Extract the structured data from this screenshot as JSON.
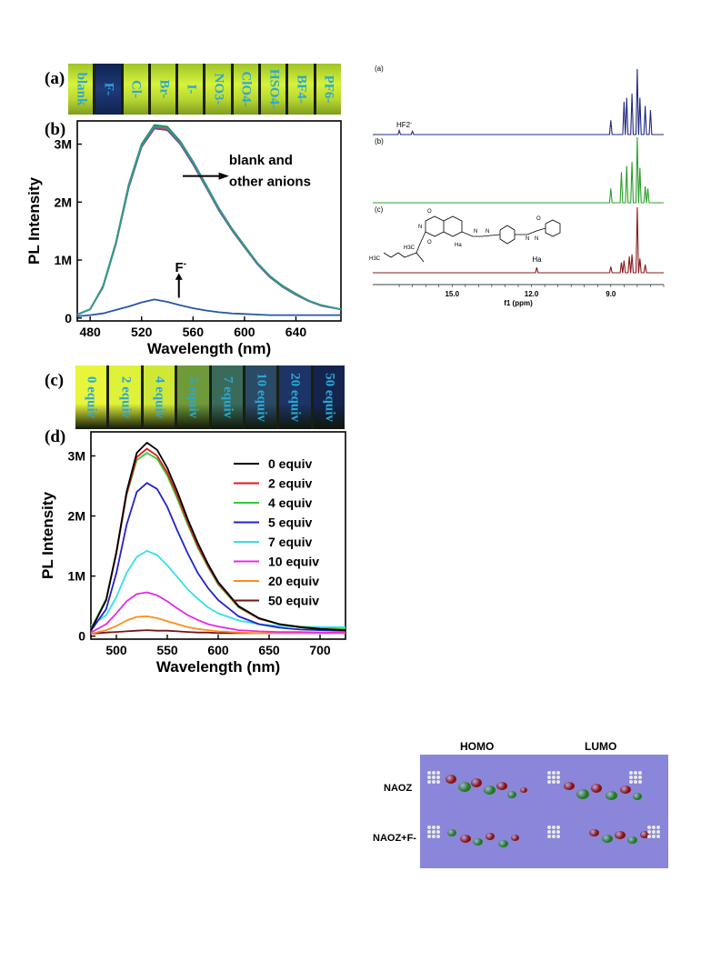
{
  "panel_a": {
    "label": "(a)",
    "vials": [
      "blank",
      "F-",
      "Cl-",
      "Br-",
      "I-",
      "NO3-",
      "ClO4-",
      "HSO4-",
      "BF4-",
      "PF6-"
    ]
  },
  "panel_b": {
    "label": "(b)"
  },
  "panel_c": {
    "label": "(c)",
    "vials": [
      "0 equiv",
      "2 equiv",
      "4 equiv",
      "5 equiv",
      "7 equiv",
      "10 equiv",
      "20 equiv",
      "50 equiv"
    ]
  },
  "panel_d": {
    "label": "(d)"
  },
  "colors": {
    "vial_bright": "#d6f23a",
    "vial_dark_blue": "#1f3a7a",
    "vial_text": "#2aa7d6",
    "mo_background": "#8a86d9"
  },
  "chart_data": [
    {
      "id": "b",
      "type": "line",
      "xlabel": "Wavelength (nm)",
      "ylabel": "PL Intensity",
      "xlim": [
        470,
        675
      ],
      "ylim": [
        -0.05,
        3.4
      ],
      "xticks": [
        480,
        520,
        560,
        600,
        640
      ],
      "yticks": [
        0,
        1,
        2,
        3
      ],
      "ytick_labels": [
        "0",
        "1M",
        "2M",
        "3M"
      ],
      "x": [
        470,
        480,
        490,
        500,
        510,
        520,
        530,
        540,
        550,
        560,
        570,
        580,
        590,
        600,
        610,
        620,
        630,
        640,
        650,
        660,
        675
      ],
      "series": [
        {
          "color": "#2e7d32",
          "values": [
            0.06,
            0.15,
            0.55,
            1.3,
            2.3,
            3.0,
            3.33,
            3.3,
            3.05,
            2.7,
            2.3,
            1.9,
            1.55,
            1.25,
            0.95,
            0.72,
            0.55,
            0.42,
            0.3,
            0.22,
            0.15
          ]
        },
        {
          "color": "#e05a3a",
          "values": [
            0.06,
            0.15,
            0.54,
            1.28,
            2.27,
            2.97,
            3.29,
            3.26,
            3.02,
            2.67,
            2.28,
            1.88,
            1.53,
            1.23,
            0.94,
            0.71,
            0.54,
            0.41,
            0.3,
            0.21,
            0.15
          ]
        },
        {
          "color": "#7a4b9c",
          "values": [
            0.06,
            0.15,
            0.53,
            1.27,
            2.25,
            2.95,
            3.27,
            3.24,
            3.0,
            2.65,
            2.26,
            1.86,
            1.52,
            1.22,
            0.93,
            0.7,
            0.53,
            0.4,
            0.29,
            0.21,
            0.15
          ]
        },
        {
          "color": "#2a9d8f",
          "values": [
            0.06,
            0.15,
            0.54,
            1.29,
            2.28,
            2.98,
            3.31,
            3.28,
            3.03,
            2.69,
            2.29,
            1.89,
            1.54,
            1.24,
            0.95,
            0.72,
            0.54,
            0.41,
            0.3,
            0.22,
            0.15
          ]
        },
        {
          "color": "#2457a8",
          "values": [
            0.03,
            0.05,
            0.08,
            0.14,
            0.2,
            0.27,
            0.32,
            0.28,
            0.22,
            0.17,
            0.13,
            0.1,
            0.08,
            0.07,
            0.06,
            0.05,
            0.05,
            0.05,
            0.05,
            0.05,
            0.05
          ]
        }
      ],
      "annotations": [
        {
          "text": "blank and",
          "x": 588,
          "y": 2.65
        },
        {
          "text": "other anions",
          "x": 588,
          "y": 2.28
        },
        {
          "text": "F",
          "sup": "-",
          "x": 546,
          "y": 0.8
        }
      ]
    },
    {
      "id": "d",
      "type": "line",
      "xlabel": "Wavelength (nm)",
      "ylabel": "PL Intensity",
      "xlim": [
        475,
        725
      ],
      "ylim": [
        -0.05,
        3.4
      ],
      "xticks": [
        500,
        550,
        600,
        650,
        700
      ],
      "yticks": [
        0,
        1,
        2,
        3
      ],
      "ytick_labels": [
        "0",
        "1M",
        "2M",
        "3M"
      ],
      "legend_position": "top-right",
      "x": [
        475,
        490,
        500,
        510,
        520,
        530,
        540,
        550,
        560,
        570,
        580,
        590,
        600,
        620,
        640,
        660,
        680,
        700,
        725
      ],
      "series": [
        {
          "name": "0 equiv",
          "color": "#000000",
          "values": [
            0.1,
            0.6,
            1.4,
            2.4,
            3.05,
            3.22,
            3.1,
            2.8,
            2.4,
            1.95,
            1.55,
            1.2,
            0.9,
            0.5,
            0.3,
            0.2,
            0.15,
            0.12,
            0.1
          ]
        },
        {
          "name": "2 equiv",
          "color": "#e3191c",
          "values": [
            0.1,
            0.6,
            1.38,
            2.36,
            2.98,
            3.12,
            3.0,
            2.72,
            2.33,
            1.9,
            1.5,
            1.17,
            0.88,
            0.49,
            0.29,
            0.2,
            0.15,
            0.12,
            0.1
          ]
        },
        {
          "name": "4 equiv",
          "color": "#33cc33",
          "values": [
            0.12,
            0.62,
            1.4,
            2.35,
            2.93,
            3.05,
            2.95,
            2.67,
            2.28,
            1.86,
            1.47,
            1.15,
            0.86,
            0.48,
            0.29,
            0.2,
            0.16,
            0.13,
            0.12
          ]
        },
        {
          "name": "5 equiv",
          "color": "#2222cc",
          "values": [
            0.09,
            0.45,
            1.05,
            1.85,
            2.4,
            2.55,
            2.45,
            2.15,
            1.75,
            1.38,
            1.05,
            0.8,
            0.6,
            0.33,
            0.2,
            0.14,
            0.11,
            0.1,
            0.09
          ]
        },
        {
          "name": "7 equiv",
          "color": "#33e0e6",
          "values": [
            0.18,
            0.35,
            0.65,
            1.05,
            1.32,
            1.42,
            1.35,
            1.18,
            0.98,
            0.78,
            0.62,
            0.48,
            0.38,
            0.26,
            0.2,
            0.17,
            0.16,
            0.15,
            0.15
          ]
        },
        {
          "name": "10 equiv",
          "color": "#e52ae5",
          "values": [
            0.06,
            0.2,
            0.38,
            0.58,
            0.7,
            0.73,
            0.68,
            0.58,
            0.46,
            0.35,
            0.27,
            0.2,
            0.16,
            0.1,
            0.08,
            0.07,
            0.07,
            0.06,
            0.06
          ]
        },
        {
          "name": "20 equiv",
          "color": "#ff8c1a",
          "values": [
            0.04,
            0.1,
            0.17,
            0.26,
            0.32,
            0.33,
            0.3,
            0.25,
            0.2,
            0.15,
            0.12,
            0.1,
            0.08,
            0.06,
            0.05,
            0.05,
            0.05,
            0.05,
            0.05
          ]
        },
        {
          "name": "50 equiv",
          "color": "#7a1414",
          "values": [
            0.04,
            0.06,
            0.07,
            0.08,
            0.09,
            0.1,
            0.09,
            0.09,
            0.08,
            0.07,
            0.06,
            0.06,
            0.05,
            0.05,
            0.05,
            0.05,
            0.05,
            0.05,
            0.05
          ]
        }
      ]
    },
    {
      "id": "nmr",
      "type": "line",
      "xlabel": "f1 (ppm)",
      "xticks": [
        15.0,
        12.0,
        9.0
      ],
      "xlim": [
        18,
        7
      ],
      "traces": [
        {
          "label": "(a)",
          "color": "#1f2a80",
          "annotation": "HF2",
          "annotation_sup": "-",
          "peaks_ppm": [
            17.0,
            16.5,
            9.0,
            8.5,
            8.4,
            8.2,
            8.0,
            7.9,
            7.7,
            7.5
          ],
          "peak_heights": [
            0.1,
            0.08,
            0.35,
            0.8,
            0.9,
            1.0,
            1.6,
            0.9,
            0.7,
            0.6
          ]
        },
        {
          "label": "(b)",
          "color": "#2ca02c",
          "peaks_ppm": [
            9.0,
            8.6,
            8.4,
            8.2,
            8.0,
            7.9,
            7.7,
            7.6
          ],
          "peak_heights": [
            0.35,
            0.75,
            0.9,
            1.0,
            1.6,
            0.85,
            0.4,
            0.35
          ]
        },
        {
          "label": "(c)",
          "color": "#8b1a1a",
          "annotation": "Ha",
          "peaks_ppm": [
            11.8,
            9.0,
            8.6,
            8.5,
            8.3,
            8.2,
            8.0,
            7.9,
            7.7
          ],
          "peak_heights": [
            0.13,
            0.15,
            0.25,
            0.3,
            0.4,
            0.45,
            1.6,
            0.35,
            0.2
          ]
        }
      ],
      "molecule_labels": [
        "O",
        "N",
        "O",
        "Ha",
        "N",
        "N",
        "O",
        "N",
        "N",
        "H3C",
        "H3C"
      ]
    }
  ],
  "mo": {
    "headers": [
      "HOMO",
      "LUMO"
    ],
    "rows": [
      "NAOZ",
      "NAOZ+F-"
    ]
  }
}
